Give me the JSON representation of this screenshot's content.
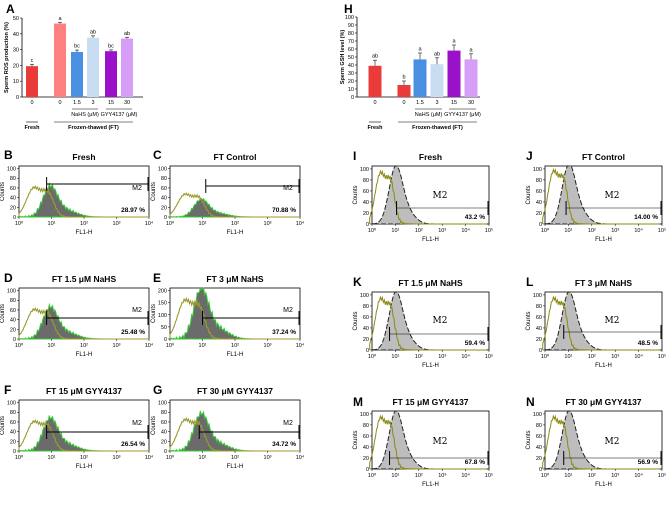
{
  "chart_data": [
    {
      "panel": "A",
      "type": "bar",
      "ylabel": "Sperm ROS production (%)",
      "yticks": [
        "0",
        "10",
        "20",
        "30",
        "40",
        "50"
      ],
      "ylim": [
        0,
        50
      ],
      "categories": [
        "0",
        "0",
        "1.5",
        "3",
        "15",
        "30"
      ],
      "values": [
        19.5,
        46.5,
        28.5,
        37.5,
        29,
        37
      ],
      "errors": [
        1.2,
        0.8,
        1.2,
        1.2,
        0.8,
        0.8
      ],
      "significance": [
        "c",
        "a",
        "bc",
        "ab",
        "bc",
        "ab"
      ],
      "colors": [
        "#ea3b3b",
        "#ff8080",
        "#4a90e2",
        "#c8dcf2",
        "#9b10c9",
        "#d79ef7"
      ],
      "bar_sublabels": [
        "NaHS (μM)",
        "GYY4137 (μM)"
      ],
      "group_labels": [
        "Fresh",
        "Frozen-thawed (FT)"
      ]
    },
    {
      "panel": "H",
      "type": "bar",
      "ylabel": "Sperm GSH level (%)",
      "yticks": [
        "0",
        "10",
        "20",
        "30",
        "40",
        "50",
        "60",
        "70",
        "80",
        "90",
        "100"
      ],
      "ylim": [
        0,
        100
      ],
      "categories": [
        "0",
        "0",
        "1.5",
        "3",
        "15",
        "30"
      ],
      "values": [
        39,
        15,
        47,
        41,
        58,
        47
      ],
      "errors": [
        7,
        5,
        8,
        8,
        7,
        7
      ],
      "significance": [
        "ab",
        "b",
        "a",
        "ab",
        "a",
        "a"
      ],
      "colors": [
        "#ea3b3b",
        "#ea3b3b",
        "#4a90e2",
        "#c8dcf2",
        "#9b10c9",
        "#d79ef7"
      ],
      "bar_sublabels": [
        "NaHS (μM)",
        "GYY4137 (μM)"
      ],
      "group_labels": [
        "Fresh",
        "Frozen-thawed (FT)"
      ]
    },
    {
      "panel": "B",
      "type": "histogram",
      "title": "Fresh",
      "percent": "28.97 %",
      "gate": "M2",
      "xlabel": "FL1-H",
      "ylabel": "Counts",
      "yticks": [
        "0",
        "20",
        "40",
        "60",
        "80",
        "100"
      ],
      "xticks": [
        "10⁰",
        "10¹",
        "10²",
        "10³",
        "10⁴"
      ],
      "peak_fraction": 0.58,
      "control_peak_fraction": 0.62,
      "gate_start_log": 0.85
    },
    {
      "panel": "C",
      "type": "histogram",
      "title": "FT Control",
      "percent": "70.88 %",
      "gate": "M2",
      "xlabel": "FL1-H",
      "ylabel": "Counts",
      "yticks": [
        "0",
        "20",
        "40",
        "60",
        "80",
        "100"
      ],
      "xticks": [
        "10⁰",
        "10¹",
        "10²",
        "10³",
        "10⁴"
      ],
      "peak_fraction": 0.33,
      "control_peak_fraction": 0.48,
      "gate_start_log": 1.1
    },
    {
      "panel": "D",
      "type": "histogram",
      "title": "FT 1.5 μM NaHS",
      "percent": "25.48 %",
      "gate": "M2",
      "xlabel": "FL1-H",
      "ylabel": "Counts",
      "yticks": [
        "0",
        "20",
        "40",
        "60",
        "80",
        "100"
      ],
      "xticks": [
        "10⁰",
        "10¹",
        "10²",
        "10³",
        "10⁴"
      ],
      "peak_fraction": 0.6,
      "control_peak_fraction": 0.62,
      "gate_start_log": 0.85
    },
    {
      "panel": "E",
      "type": "histogram",
      "title": "FT 3 μM NaHS",
      "percent": "37.24 %",
      "gate": "M2",
      "xlabel": "FL1-H",
      "ylabel": "Counts",
      "yticks": [
        "0",
        "50",
        "100",
        "150",
        "200"
      ],
      "xticks": [
        "10⁰",
        "10¹",
        "10²",
        "10³",
        "10⁴"
      ],
      "peak_fraction": 0.95,
      "control_peak_fraction": 0.82,
      "gate_start_log": 1.0
    },
    {
      "panel": "F",
      "type": "histogram",
      "title": "FT 15 μM GYY4137",
      "percent": "26.54 %",
      "gate": "M2",
      "xlabel": "FL1-H",
      "ylabel": "Counts",
      "yticks": [
        "0",
        "20",
        "40",
        "60",
        "80",
        "100"
      ],
      "xticks": [
        "10⁰",
        "10¹",
        "10²",
        "10³",
        "10⁴"
      ],
      "peak_fraction": 0.62,
      "control_peak_fraction": 0.62,
      "gate_start_log": 0.85
    },
    {
      "panel": "G",
      "type": "histogram",
      "title": "FT 30 μM GYY4137",
      "percent": "34.72 %",
      "gate": "M2",
      "xlabel": "FL1-H",
      "ylabel": "Counts",
      "yticks": [
        "0",
        "20",
        "40",
        "60",
        "80",
        "100"
      ],
      "xticks": [
        "10⁰",
        "10¹",
        "10²",
        "10³",
        "10⁴"
      ],
      "peak_fraction": 0.7,
      "control_peak_fraction": 0.66,
      "gate_start_log": 0.9
    },
    {
      "panel": "I",
      "type": "histogram",
      "title": "Fresh",
      "percent": "43.2 %",
      "gate": "M2",
      "xlabel": "FL1-H",
      "ylabel": "Counts",
      "yticks": [
        "0",
        "20",
        "40",
        "60",
        "80",
        "100"
      ],
      "xticks": [
        "10⁰",
        "10¹",
        "10²",
        "10³",
        "10⁴",
        "10⁵"
      ],
      "peak_fraction": 0.95,
      "control_peak_fraction": 0.95,
      "gate_start_log": 1.05
    },
    {
      "panel": "J",
      "type": "histogram",
      "title": "FT Control",
      "percent": "14.00 %",
      "gate": "M2",
      "xlabel": "FL1-H",
      "ylabel": "Counts",
      "yticks": [
        "0",
        "20",
        "40",
        "60",
        "80",
        "100"
      ],
      "xticks": [
        "10⁰",
        "10¹",
        "10²",
        "10³",
        "10⁴",
        "10⁵"
      ],
      "peak_fraction": 0.98,
      "control_peak_fraction": 0.98,
      "gate_start_log": 0.9
    },
    {
      "panel": "K",
      "type": "histogram",
      "title": "FT 1.5 μM NaHS",
      "percent": "59.4 %",
      "gate": "M2",
      "xlabel": "FL1-H",
      "ylabel": "Counts",
      "yticks": [
        "0",
        "20",
        "40",
        "60",
        "80",
        "100"
      ],
      "xticks": [
        "10⁰",
        "10¹",
        "10²",
        "10³",
        "10⁴",
        "10⁵"
      ],
      "peak_fraction": 0.95,
      "control_peak_fraction": 0.95,
      "gate_start_log": 0.75
    },
    {
      "panel": "L",
      "type": "histogram",
      "title": "FT 3 μM NaHS",
      "percent": "48.5 %",
      "gate": "M2",
      "xlabel": "FL1-H",
      "ylabel": "Counts",
      "yticks": [
        "0",
        "20",
        "40",
        "60",
        "80",
        "100"
      ],
      "xticks": [
        "10⁰",
        "10¹",
        "10²",
        "10³",
        "10⁴",
        "10⁵"
      ],
      "peak_fraction": 0.95,
      "control_peak_fraction": 0.95,
      "gate_start_log": 0.8
    },
    {
      "panel": "M",
      "type": "histogram",
      "title": "FT 15 μM GYY4137",
      "percent": "67.8 %",
      "gate": "M2",
      "xlabel": "FL1-H",
      "ylabel": "Counts",
      "yticks": [
        "0",
        "20",
        "40",
        "60",
        "80",
        "100"
      ],
      "xticks": [
        "10⁰",
        "10¹",
        "10²",
        "10³",
        "10⁴",
        "10⁵"
      ],
      "peak_fraction": 0.95,
      "control_peak_fraction": 0.95,
      "gate_start_log": 0.75
    },
    {
      "panel": "N",
      "type": "histogram",
      "title": "FT 30 μM GYY4137",
      "percent": "56.9 %",
      "gate": "M2",
      "xlabel": "FL1-H",
      "ylabel": "Counts",
      "yticks": [
        "0",
        "20",
        "40",
        "60",
        "80",
        "100"
      ],
      "xticks": [
        "10⁰",
        "10¹",
        "10²",
        "10³",
        "10⁴",
        "10⁵"
      ],
      "peak_fraction": 0.95,
      "control_peak_fraction": 0.95,
      "gate_start_log": 0.8
    }
  ]
}
